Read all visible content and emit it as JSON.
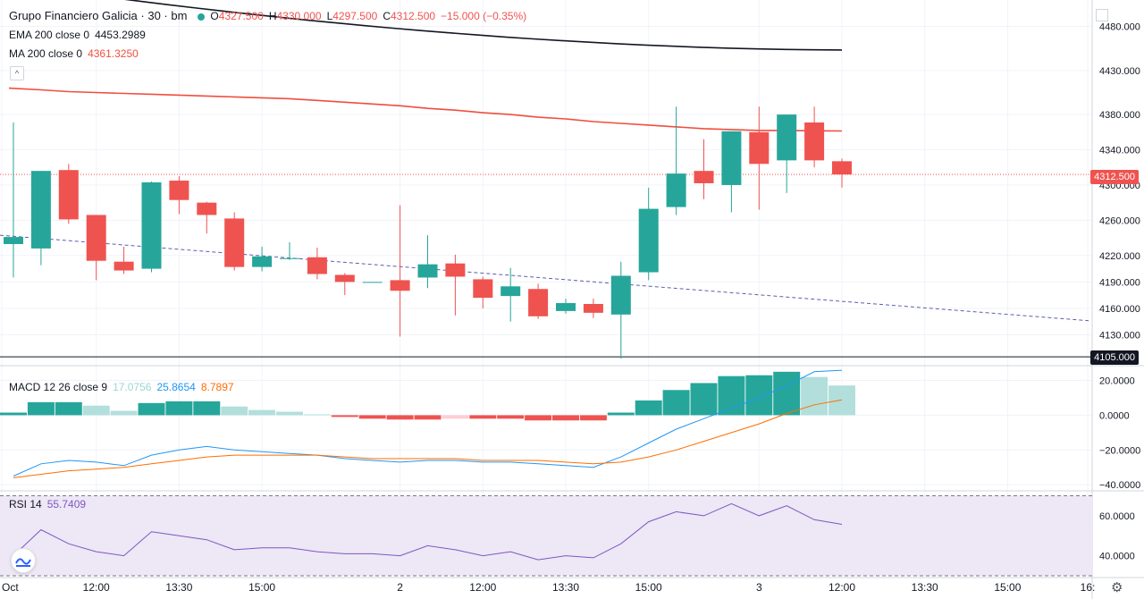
{
  "legend": {
    "symbol": "Grupo Financiero Galicia · 30 · bm",
    "open_label": "O",
    "open": "4327.500",
    "high_label": "H",
    "high": "4330.000",
    "low_label": "L",
    "low": "4297.500",
    "close_label": "C",
    "close": "4312.500",
    "change": "−15.000 (−0.35%)",
    "ema_label": "EMA 200 close 0",
    "ema_value": "4453.2989",
    "ma_label": "MA 200 close 0",
    "ma_value": "4361.3250",
    "macd_label": "MACD 12 26 close 9",
    "macd_hist": "17.0756",
    "macd_line": "25.8654",
    "macd_signal": "8.7897",
    "rsi_label": "RSI 14",
    "rsi_value": "55.7409"
  },
  "price_tags": {
    "last": "4312.500",
    "support": "4105.000"
  },
  "colors": {
    "up": "#26a69a",
    "down": "#ef5350",
    "ema": "#131722",
    "ma": "#f04e3e",
    "trend": "#5d5fa8",
    "macd_line": "#2196f3",
    "signal_line": "#ff6d00",
    "hist_up_strong": "#26a69a",
    "hist_up_weak": "#b2dfdb",
    "hist_down_strong": "#ef5350",
    "hist_down_weak": "#ffcdd2",
    "rsi_line": "#7e57c2",
    "rsi_band": "#ede7f6"
  },
  "chart_data": {
    "type": "candlestick",
    "title": "Grupo Financiero Galicia · 30 · bm",
    "ylim": [
      4096,
      4510
    ],
    "price_ticks": [
      "4480.000",
      "4430.000",
      "4380.000",
      "4340.000",
      "4300.000",
      "4260.000",
      "4220.000",
      "4190.000",
      "4160.000",
      "4130.000"
    ],
    "x_ticks": [
      "Oct",
      "12:00",
      "13:30",
      "15:00",
      "2",
      "12:00",
      "13:30",
      "15:00",
      "3",
      "12:00",
      "13:30",
      "15:00",
      "16:"
    ],
    "candles": [
      {
        "o": 4233,
        "h": 4371,
        "l": 4195,
        "c": 4241
      },
      {
        "o": 4228,
        "h": 4316,
        "l": 4209,
        "c": 4316
      },
      {
        "o": 4317,
        "h": 4324,
        "l": 4256,
        "c": 4261
      },
      {
        "o": 4266,
        "h": 4266,
        "l": 4192,
        "c": 4214
      },
      {
        "o": 4213,
        "h": 4230,
        "l": 4199,
        "c": 4203
      },
      {
        "o": 4205,
        "h": 4304,
        "l": 4201,
        "c": 4303
      },
      {
        "o": 4305,
        "h": 4310,
        "l": 4267,
        "c": 4283
      },
      {
        "o": 4280,
        "h": 4281,
        "l": 4245,
        "c": 4266
      },
      {
        "o": 4262,
        "h": 4269,
        "l": 4203,
        "c": 4207
      },
      {
        "o": 4207,
        "h": 4230,
        "l": 4202,
        "c": 4219
      },
      {
        "o": 4217,
        "h": 4235,
        "l": 4215,
        "c": 4217
      },
      {
        "o": 4218,
        "h": 4229,
        "l": 4193,
        "c": 4199
      },
      {
        "o": 4198,
        "h": 4200,
        "l": 4175,
        "c": 4190
      },
      {
        "o": 4190,
        "h": 4190,
        "l": 4190,
        "c": 4190
      },
      {
        "o": 4192,
        "h": 4277,
        "l": 4128,
        "c": 4180
      },
      {
        "o": 4195,
        "h": 4243,
        "l": 4183,
        "c": 4210
      },
      {
        "o": 4211,
        "h": 4221,
        "l": 4152,
        "c": 4196
      },
      {
        "o": 4193,
        "h": 4196,
        "l": 4160,
        "c": 4172
      },
      {
        "o": 4174,
        "h": 4206,
        "l": 4145,
        "c": 4185
      },
      {
        "o": 4182,
        "h": 4188,
        "l": 4148,
        "c": 4151
      },
      {
        "o": 4157,
        "h": 4171,
        "l": 4154,
        "c": 4166
      },
      {
        "o": 4165,
        "h": 4171,
        "l": 4149,
        "c": 4155
      },
      {
        "o": 4153,
        "h": 4213,
        "l": 4103,
        "c": 4197
      },
      {
        "o": 4201,
        "h": 4297,
        "l": 4192,
        "c": 4273
      },
      {
        "o": 4275,
        "h": 4389,
        "l": 4266,
        "c": 4313
      },
      {
        "o": 4316,
        "h": 4352,
        "l": 4284,
        "c": 4302
      },
      {
        "o": 4300,
        "h": 4361,
        "l": 4269,
        "c": 4361
      },
      {
        "o": 4360,
        "h": 4389,
        "l": 4272,
        "c": 4324
      },
      {
        "o": 4328,
        "h": 4380,
        "l": 4291,
        "c": 4380
      },
      {
        "o": 4371,
        "h": 4389,
        "l": 4320,
        "c": 4328
      },
      {
        "o": 4327,
        "h": 4330,
        "l": 4297,
        "c": 4312
      }
    ],
    "ema_200": {
      "start": 4530,
      "end": 4453.3
    },
    "ma_200": [
      4410,
      4408,
      4406,
      4405,
      4404,
      4403,
      4402,
      4401,
      4400,
      4399,
      4398,
      4396,
      4394,
      4392,
      4390,
      4387,
      4385,
      4382,
      4380,
      4377,
      4375,
      4372,
      4370,
      4368,
      4366,
      4364,
      4363,
      4362,
      4362,
      4361.5,
      4361.3
    ],
    "trendline": {
      "start": 4243,
      "end": 4146
    },
    "support_level": 4105,
    "macd": {
      "ylim": [
        -43,
        28
      ],
      "ticks": [
        "20.0000",
        "0.0000",
        "−20.0000",
        "−40.0000"
      ],
      "histogram": [
        1.5,
        7.5,
        7.5,
        5.5,
        2.5,
        7,
        8,
        8,
        5,
        3,
        2,
        0.5,
        -1,
        -2,
        -2.5,
        -2.5,
        -2,
        -2,
        -2,
        -3,
        -3,
        -3,
        1.5,
        8.5,
        14.5,
        18.5,
        22.5,
        23,
        25,
        22,
        17.1
      ],
      "macd_line": [
        -35,
        -28,
        -26,
        -27,
        -29,
        -23,
        -20,
        -18,
        -20,
        -21,
        -22,
        -23,
        -25,
        -26,
        -27,
        -26,
        -26,
        -27,
        -27,
        -28,
        -29,
        -30,
        -24,
        -16,
        -8,
        -2,
        4,
        10,
        17,
        25,
        25.9
      ],
      "signal_line": [
        -36,
        -34,
        -32,
        -31,
        -30,
        -28,
        -26,
        -24,
        -23,
        -23,
        -23,
        -23,
        -24,
        -25,
        -25,
        -25,
        -25,
        -26,
        -26,
        -26,
        -27,
        -28,
        -27,
        -24,
        -20,
        -15,
        -10,
        -5,
        1,
        6,
        8.8
      ]
    },
    "rsi": {
      "ylim": [
        30,
        72
      ],
      "ticks": [
        "60.0000",
        "40.0000"
      ],
      "band": [
        30,
        70
      ],
      "values": [
        40,
        53,
        46,
        42,
        40,
        52,
        50,
        48,
        43,
        44,
        44,
        42,
        41,
        41,
        40,
        45,
        43,
        40,
        42,
        38,
        40,
        39,
        46,
        57,
        62,
        60,
        66,
        60,
        65,
        58,
        55.7
      ]
    }
  }
}
